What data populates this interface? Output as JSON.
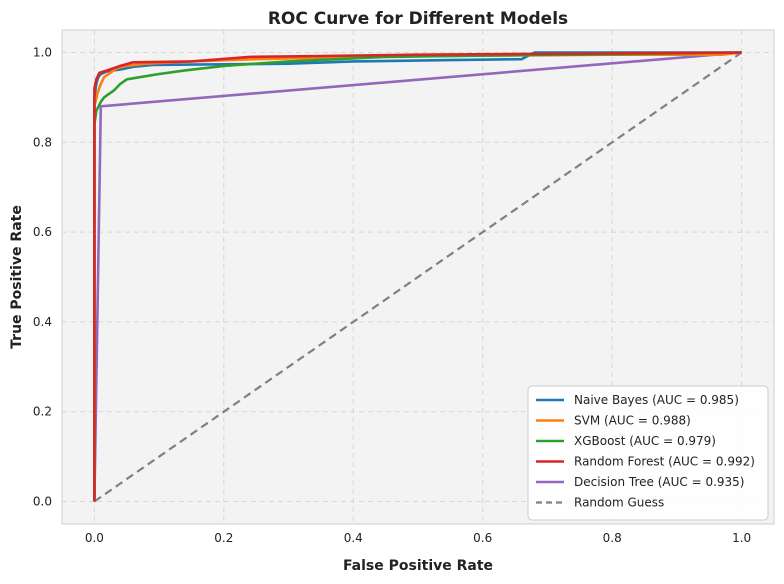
{
  "chart_data": {
    "type": "line",
    "title": "ROC Curve for Different Models",
    "xlabel": "False Positive Rate",
    "ylabel": "True Positive Rate",
    "xlim": [
      -0.05,
      1.05
    ],
    "ylim": [
      -0.05,
      1.05
    ],
    "xticks": [
      0.0,
      0.2,
      0.4,
      0.6,
      0.8,
      1.0
    ],
    "yticks": [
      0.0,
      0.2,
      0.4,
      0.6,
      0.8,
      1.0
    ],
    "xtick_labels": [
      "0.0",
      "0.2",
      "0.4",
      "0.6",
      "0.8",
      "1.0"
    ],
    "ytick_labels": [
      "0.0",
      "0.2",
      "0.4",
      "0.6",
      "0.8",
      "1.0"
    ],
    "grid": true,
    "legend_position": "lower-right",
    "series": [
      {
        "name": "Naive Bayes (AUC = 0.985)",
        "color": "#1f77b4",
        "points": [
          [
            0,
            0
          ],
          [
            0,
            0.9
          ],
          [
            0.003,
            0.93
          ],
          [
            0.006,
            0.945
          ],
          [
            0.01,
            0.952
          ],
          [
            0.02,
            0.958
          ],
          [
            0.04,
            0.962
          ],
          [
            0.06,
            0.968
          ],
          [
            0.09,
            0.972
          ],
          [
            0.15,
            0.973
          ],
          [
            0.3,
            0.975
          ],
          [
            0.4,
            0.98
          ],
          [
            0.55,
            0.983
          ],
          [
            0.66,
            0.985
          ],
          [
            0.68,
            1.0
          ],
          [
            1.0,
            1.0
          ]
        ]
      },
      {
        "name": "SVM (AUC = 0.988)",
        "color": "#ff7f0e",
        "points": [
          [
            0,
            0
          ],
          [
            0,
            0.88
          ],
          [
            0.005,
            0.91
          ],
          [
            0.01,
            0.93
          ],
          [
            0.015,
            0.945
          ],
          [
            0.025,
            0.955
          ],
          [
            0.035,
            0.965
          ],
          [
            0.05,
            0.97
          ],
          [
            0.08,
            0.975
          ],
          [
            0.15,
            0.98
          ],
          [
            0.25,
            0.985
          ],
          [
            0.4,
            0.99
          ],
          [
            0.6,
            0.993
          ],
          [
            0.8,
            0.995
          ],
          [
            0.97,
            0.995
          ],
          [
            1.0,
            1.0
          ]
        ]
      },
      {
        "name": "XGBoost (AUC = 0.979)",
        "color": "#2ca02c",
        "points": [
          [
            0,
            0
          ],
          [
            0,
            0.84
          ],
          [
            0.003,
            0.87
          ],
          [
            0.01,
            0.89
          ],
          [
            0.015,
            0.9
          ],
          [
            0.02,
            0.905
          ],
          [
            0.03,
            0.915
          ],
          [
            0.04,
            0.93
          ],
          [
            0.05,
            0.94
          ],
          [
            0.07,
            0.945
          ],
          [
            0.1,
            0.952
          ],
          [
            0.14,
            0.96
          ],
          [
            0.2,
            0.97
          ],
          [
            0.3,
            0.98
          ],
          [
            0.45,
            0.99
          ],
          [
            0.6,
            0.993
          ],
          [
            0.8,
            0.996
          ],
          [
            1.0,
            1.0
          ]
        ]
      },
      {
        "name": "Random Forest (AUC = 0.992)",
        "color": "#d62728",
        "points": [
          [
            0,
            0
          ],
          [
            0,
            0.92
          ],
          [
            0.003,
            0.94
          ],
          [
            0.008,
            0.955
          ],
          [
            0.02,
            0.96
          ],
          [
            0.04,
            0.97
          ],
          [
            0.06,
            0.978
          ],
          [
            0.15,
            0.98
          ],
          [
            0.24,
            0.99
          ],
          [
            0.35,
            0.992
          ],
          [
            0.5,
            0.995
          ],
          [
            0.7,
            0.997
          ],
          [
            1.0,
            1.0
          ]
        ]
      },
      {
        "name": "Decision Tree (AUC = 0.935)",
        "color": "#9467bd",
        "points": [
          [
            0,
            0
          ],
          [
            0.01,
            0.88
          ],
          [
            1.0,
            1.0
          ]
        ]
      },
      {
        "name": "Random Guess",
        "color": "#808080",
        "dashed": true,
        "points": [
          [
            0,
            0
          ],
          [
            1.0,
            1.0
          ]
        ]
      }
    ]
  }
}
